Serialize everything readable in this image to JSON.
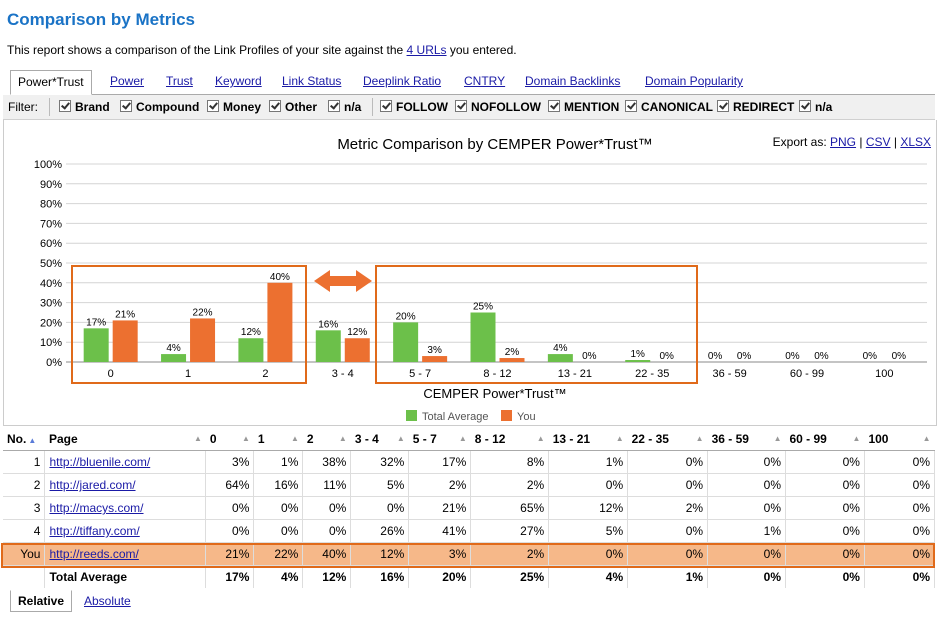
{
  "page": {
    "title": "Comparison by Metrics",
    "desc_before": "This report shows a comparison of the Link Profiles of your site against the ",
    "desc_link": "4 URLs",
    "desc_after": " you entered."
  },
  "tabs": [
    "Power*Trust",
    "Power",
    "Trust",
    "Keyword",
    "Link Status",
    "Deeplink Ratio",
    "CNTRY",
    "Domain Backlinks",
    "Domain Popularity"
  ],
  "filter": {
    "label": "Filter:",
    "items": [
      "Brand",
      "Compound",
      "Money",
      "Other",
      "n/a",
      "FOLLOW",
      "NOFOLLOW",
      "MENTION",
      "CANONICAL",
      "REDIRECT",
      "n/a"
    ]
  },
  "export": {
    "label": "Export as:",
    "png": "PNG",
    "csv": "CSV",
    "xlsx": "XLSX"
  },
  "colors": {
    "total_average": "#6cc04a",
    "you": "#ec7030",
    "highlight": "#e06a1a",
    "title": "#1a73c6"
  },
  "chart_data": {
    "type": "bar",
    "title": "Metric Comparison by CEMPER Power*Trust™",
    "xlabel": "CEMPER Power*Trust™",
    "ylabel": "",
    "ylim": [
      0,
      100
    ],
    "yticks": [
      "0%",
      "10%",
      "20%",
      "30%",
      "40%",
      "50%",
      "60%",
      "70%",
      "80%",
      "90%",
      "100%"
    ],
    "categories": [
      "0",
      "1",
      "2",
      "3 - 4",
      "5 - 7",
      "8 - 12",
      "13 - 21",
      "22 - 35",
      "36 - 59",
      "60 - 99",
      "100"
    ],
    "series": [
      {
        "name": "Total Average",
        "values": [
          17,
          4,
          12,
          16,
          20,
          25,
          4,
          1,
          0,
          0,
          0
        ]
      },
      {
        "name": "You",
        "values": [
          21,
          22,
          40,
          12,
          3,
          2,
          0,
          0,
          0,
          0,
          0
        ]
      }
    ],
    "grid": true,
    "legend": "bottom"
  },
  "table": {
    "headers": [
      "No.",
      "Page",
      "0",
      "1",
      "2",
      "3 - 4",
      "5 - 7",
      "8 - 12",
      "13 - 21",
      "22 - 35",
      "36 - 59",
      "60 - 99",
      "100"
    ],
    "rows": [
      {
        "no": "1",
        "page": "http://bluenile.com/",
        "values": [
          "3%",
          "1%",
          "38%",
          "32%",
          "17%",
          "8%",
          "1%",
          "0%",
          "0%",
          "0%",
          "0%"
        ]
      },
      {
        "no": "2",
        "page": "http://jared.com/",
        "values": [
          "64%",
          "16%",
          "11%",
          "5%",
          "2%",
          "2%",
          "0%",
          "0%",
          "0%",
          "0%",
          "0%"
        ]
      },
      {
        "no": "3",
        "page": "http://macys.com/",
        "values": [
          "0%",
          "0%",
          "0%",
          "0%",
          "21%",
          "65%",
          "12%",
          "2%",
          "0%",
          "0%",
          "0%"
        ]
      },
      {
        "no": "4",
        "page": "http://tiffany.com/",
        "values": [
          "0%",
          "0%",
          "0%",
          "26%",
          "41%",
          "27%",
          "5%",
          "0%",
          "1%",
          "0%",
          "0%"
        ]
      },
      {
        "no": "You",
        "page": "http://reeds.com/",
        "values": [
          "21%",
          "22%",
          "40%",
          "12%",
          "3%",
          "2%",
          "0%",
          "0%",
          "0%",
          "0%",
          "0%"
        ]
      }
    ],
    "total": {
      "label": "Total Average",
      "values": [
        "17%",
        "4%",
        "12%",
        "16%",
        "20%",
        "25%",
        "4%",
        "1%",
        "0%",
        "0%",
        "0%"
      ]
    }
  },
  "subtabs": [
    "Relative",
    "Absolute"
  ]
}
